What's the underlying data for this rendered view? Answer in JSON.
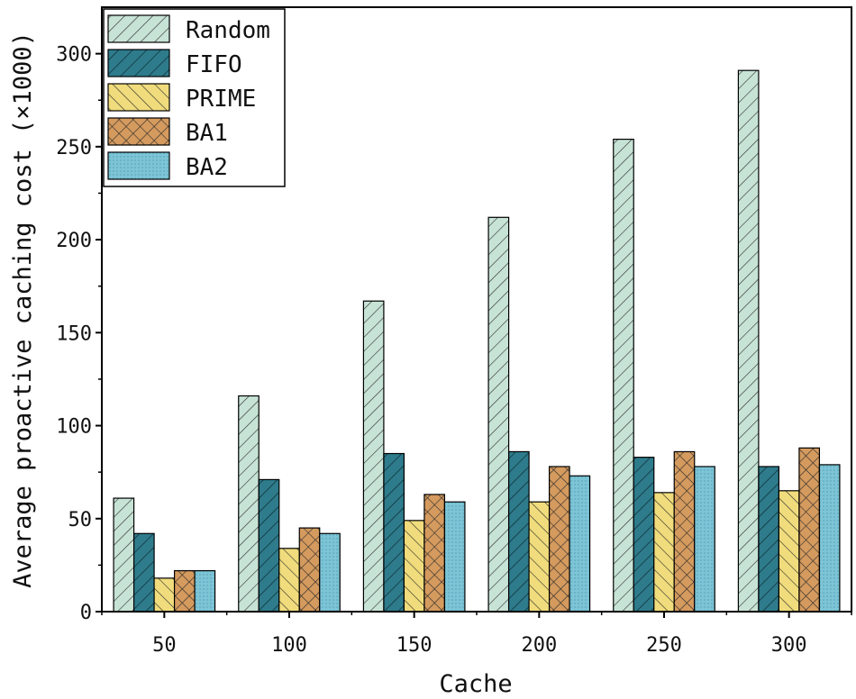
{
  "chart_data": {
    "type": "bar",
    "title": "",
    "xlabel": "Cache",
    "ylabel": "Average proactive caching cost (×1000)",
    "categories": [
      "50",
      "100",
      "150",
      "200",
      "250",
      "300"
    ],
    "ylim": [
      0,
      325
    ],
    "yticks": [
      0,
      50,
      100,
      150,
      200,
      250,
      300
    ],
    "grid": false,
    "legend_position": "top-left",
    "series": [
      {
        "name": "Random",
        "color": "#c7e3d6",
        "pattern": "diag-right",
        "values": [
          61,
          116,
          167,
          212,
          254,
          291
        ]
      },
      {
        "name": "FIFO",
        "color": "#2e7b8c",
        "pattern": "diag-right-dark",
        "values": [
          42,
          71,
          85,
          86,
          83,
          78
        ]
      },
      {
        "name": "PRIME",
        "color": "#f0dc7c",
        "pattern": "diag-left",
        "values": [
          18,
          34,
          49,
          59,
          64,
          65
        ]
      },
      {
        "name": "BA1",
        "color": "#d49a5e",
        "pattern": "cross",
        "values": [
          22,
          45,
          63,
          78,
          86,
          88
        ]
      },
      {
        "name": "BA2",
        "color": "#7cc4d6",
        "pattern": "dots",
        "values": [
          22,
          42,
          59,
          73,
          78,
          79
        ]
      }
    ]
  }
}
